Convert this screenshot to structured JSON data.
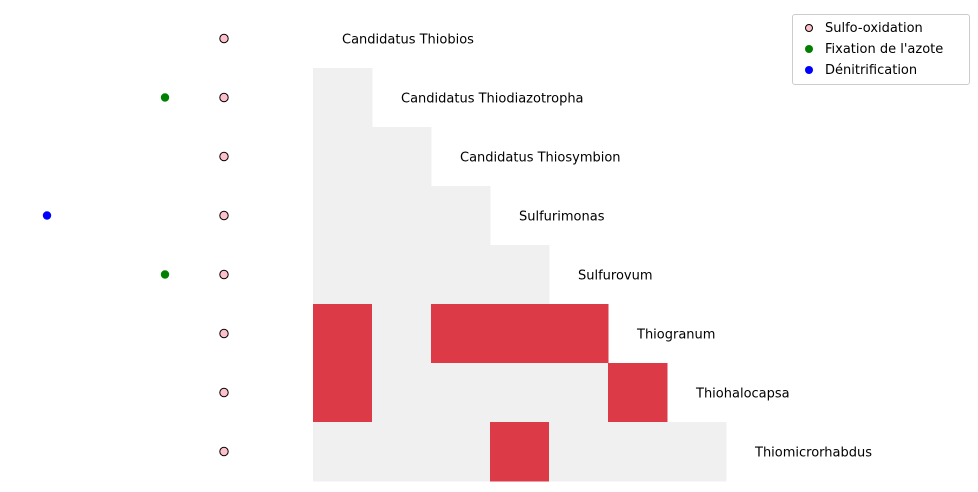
{
  "chart_data": {
    "type": "heatmap",
    "rows": [
      "Candidatus Thiobios",
      "Candidatus Thiodiazotropha",
      "Candidatus Thiosymbion",
      "Sulfurimonas",
      "Sulfurovum",
      "Thiogranum",
      "Thiohalocapsa",
      "Thiomicrorhabdus"
    ],
    "cells": [
      [],
      [
        0
      ],
      [
        0,
        0
      ],
      [
        0,
        0,
        0
      ],
      [
        0,
        0,
        0,
        0
      ],
      [
        1,
        0,
        1,
        1,
        1
      ],
      [
        1,
        0,
        0,
        0,
        0,
        1
      ],
      [
        0,
        0,
        0,
        1,
        0,
        0,
        0
      ]
    ],
    "traits": [
      {
        "name": "Dénitrification",
        "color": "#0000ff",
        "rows": [
          3
        ]
      },
      {
        "name": "Fixation de l'azote",
        "color": "#008000",
        "rows": [
          1,
          4
        ]
      },
      {
        "name": "Sulfo-oxidation",
        "color": "#ffc0cb",
        "edge": "#000000",
        "rows": [
          0,
          1,
          2,
          3,
          4,
          5,
          6,
          7
        ]
      }
    ],
    "colors": {
      "present": "#dc3a47",
      "absent": "#f0f0f0"
    },
    "legend": {
      "placement": "top-right",
      "items": [
        {
          "label": "Sulfo-oxidation",
          "color": "#ffc0cb",
          "edge": "#000000"
        },
        {
          "label": "Fixation de l'azote",
          "color": "#008000"
        },
        {
          "label": "Dénitrification",
          "color": "#0000ff"
        }
      ]
    }
  }
}
